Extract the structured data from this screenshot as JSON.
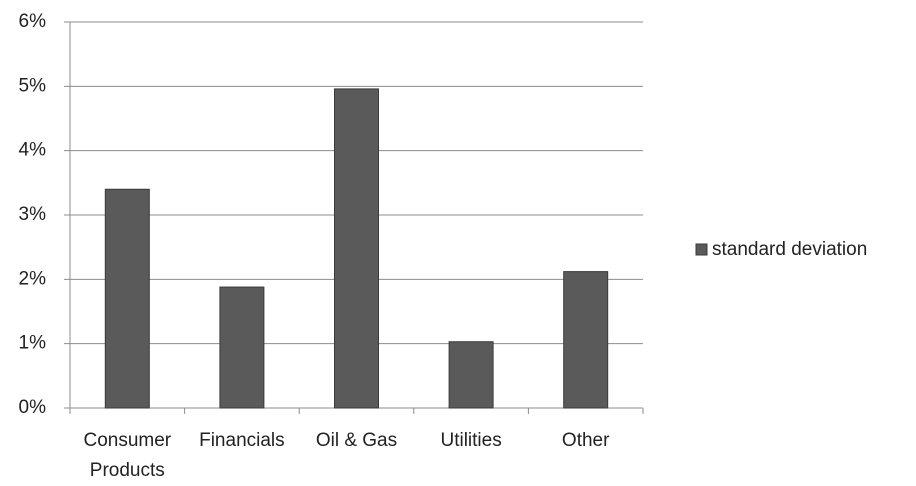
{
  "chart_data": {
    "type": "bar",
    "categories": [
      "Consumer Products",
      "Financials",
      "Oil & Gas",
      "Utilities",
      "Other"
    ],
    "series": [
      {
        "name": "standard deviation",
        "color": "#5a5a5a",
        "values": [
          3.4,
          1.88,
          4.96,
          1.03,
          2.12
        ]
      }
    ],
    "ylim": [
      0,
      6
    ],
    "yticks": [
      {
        "value": 0,
        "label": "0%"
      },
      {
        "value": 1,
        "label": "1%"
      },
      {
        "value": 2,
        "label": "2%"
      },
      {
        "value": 3,
        "label": "3%"
      },
      {
        "value": 4,
        "label": "4%"
      },
      {
        "value": 5,
        "label": "5%"
      },
      {
        "value": 6,
        "label": "6%"
      }
    ],
    "grid": true,
    "legend": "right"
  }
}
